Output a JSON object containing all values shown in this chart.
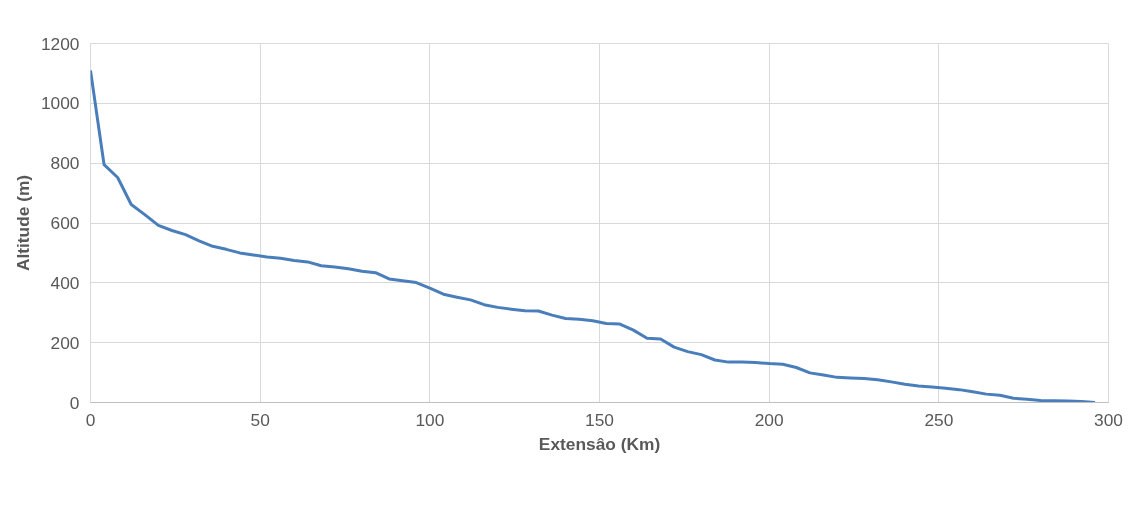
{
  "chart_data": {
    "type": "line",
    "xlabel": "Extensâo (Km)",
    "ylabel": "Altitude (m)",
    "xlim": [
      0,
      300
    ],
    "xticks": [
      0,
      50,
      100,
      150,
      200,
      250,
      300
    ],
    "ylim": [
      0,
      1200
    ],
    "yticks": [
      0,
      200,
      400,
      600,
      800,
      1000,
      1200
    ],
    "grid": true,
    "marker": "none",
    "line_style": "solid",
    "series": [
      {
        "color": "#4a7ebb",
        "x": [
          0,
          4,
          8,
          12,
          16,
          20,
          24,
          28,
          32,
          36,
          40,
          44,
          48,
          52,
          56,
          60,
          64,
          68,
          72,
          76,
          80,
          84,
          88,
          92,
          96,
          100,
          104,
          108,
          112,
          116,
          120,
          124,
          128,
          132,
          136,
          140,
          144,
          148,
          152,
          156,
          160,
          164,
          168,
          172,
          176,
          180,
          184,
          188,
          192,
          196,
          200,
          204,
          208,
          212,
          216,
          220,
          224,
          228,
          232,
          236,
          240,
          244,
          248,
          252,
          256,
          260,
          264,
          268,
          272,
          276,
          280,
          284,
          288,
          292,
          296
        ],
        "values": [
          1110,
          795,
          752,
          662,
          628,
          592,
          575,
          561,
          540,
          522,
          512,
          500,
          493,
          486,
          482,
          475,
          470,
          457,
          453,
          447,
          439,
          434,
          413,
          407,
          401,
          382,
          362,
          352,
          343,
          327,
          318,
          312,
          307,
          306,
          292,
          281,
          278,
          273,
          264,
          262,
          242,
          215,
          212,
          185,
          170,
          160,
          142,
          135,
          135,
          134,
          130,
          128,
          117,
          99,
          92,
          84,
          82,
          80,
          76,
          69,
          61,
          55,
          52,
          48,
          43,
          36,
          28,
          24,
          14,
          11,
          7,
          6,
          5,
          3,
          0
        ]
      }
    ]
  }
}
